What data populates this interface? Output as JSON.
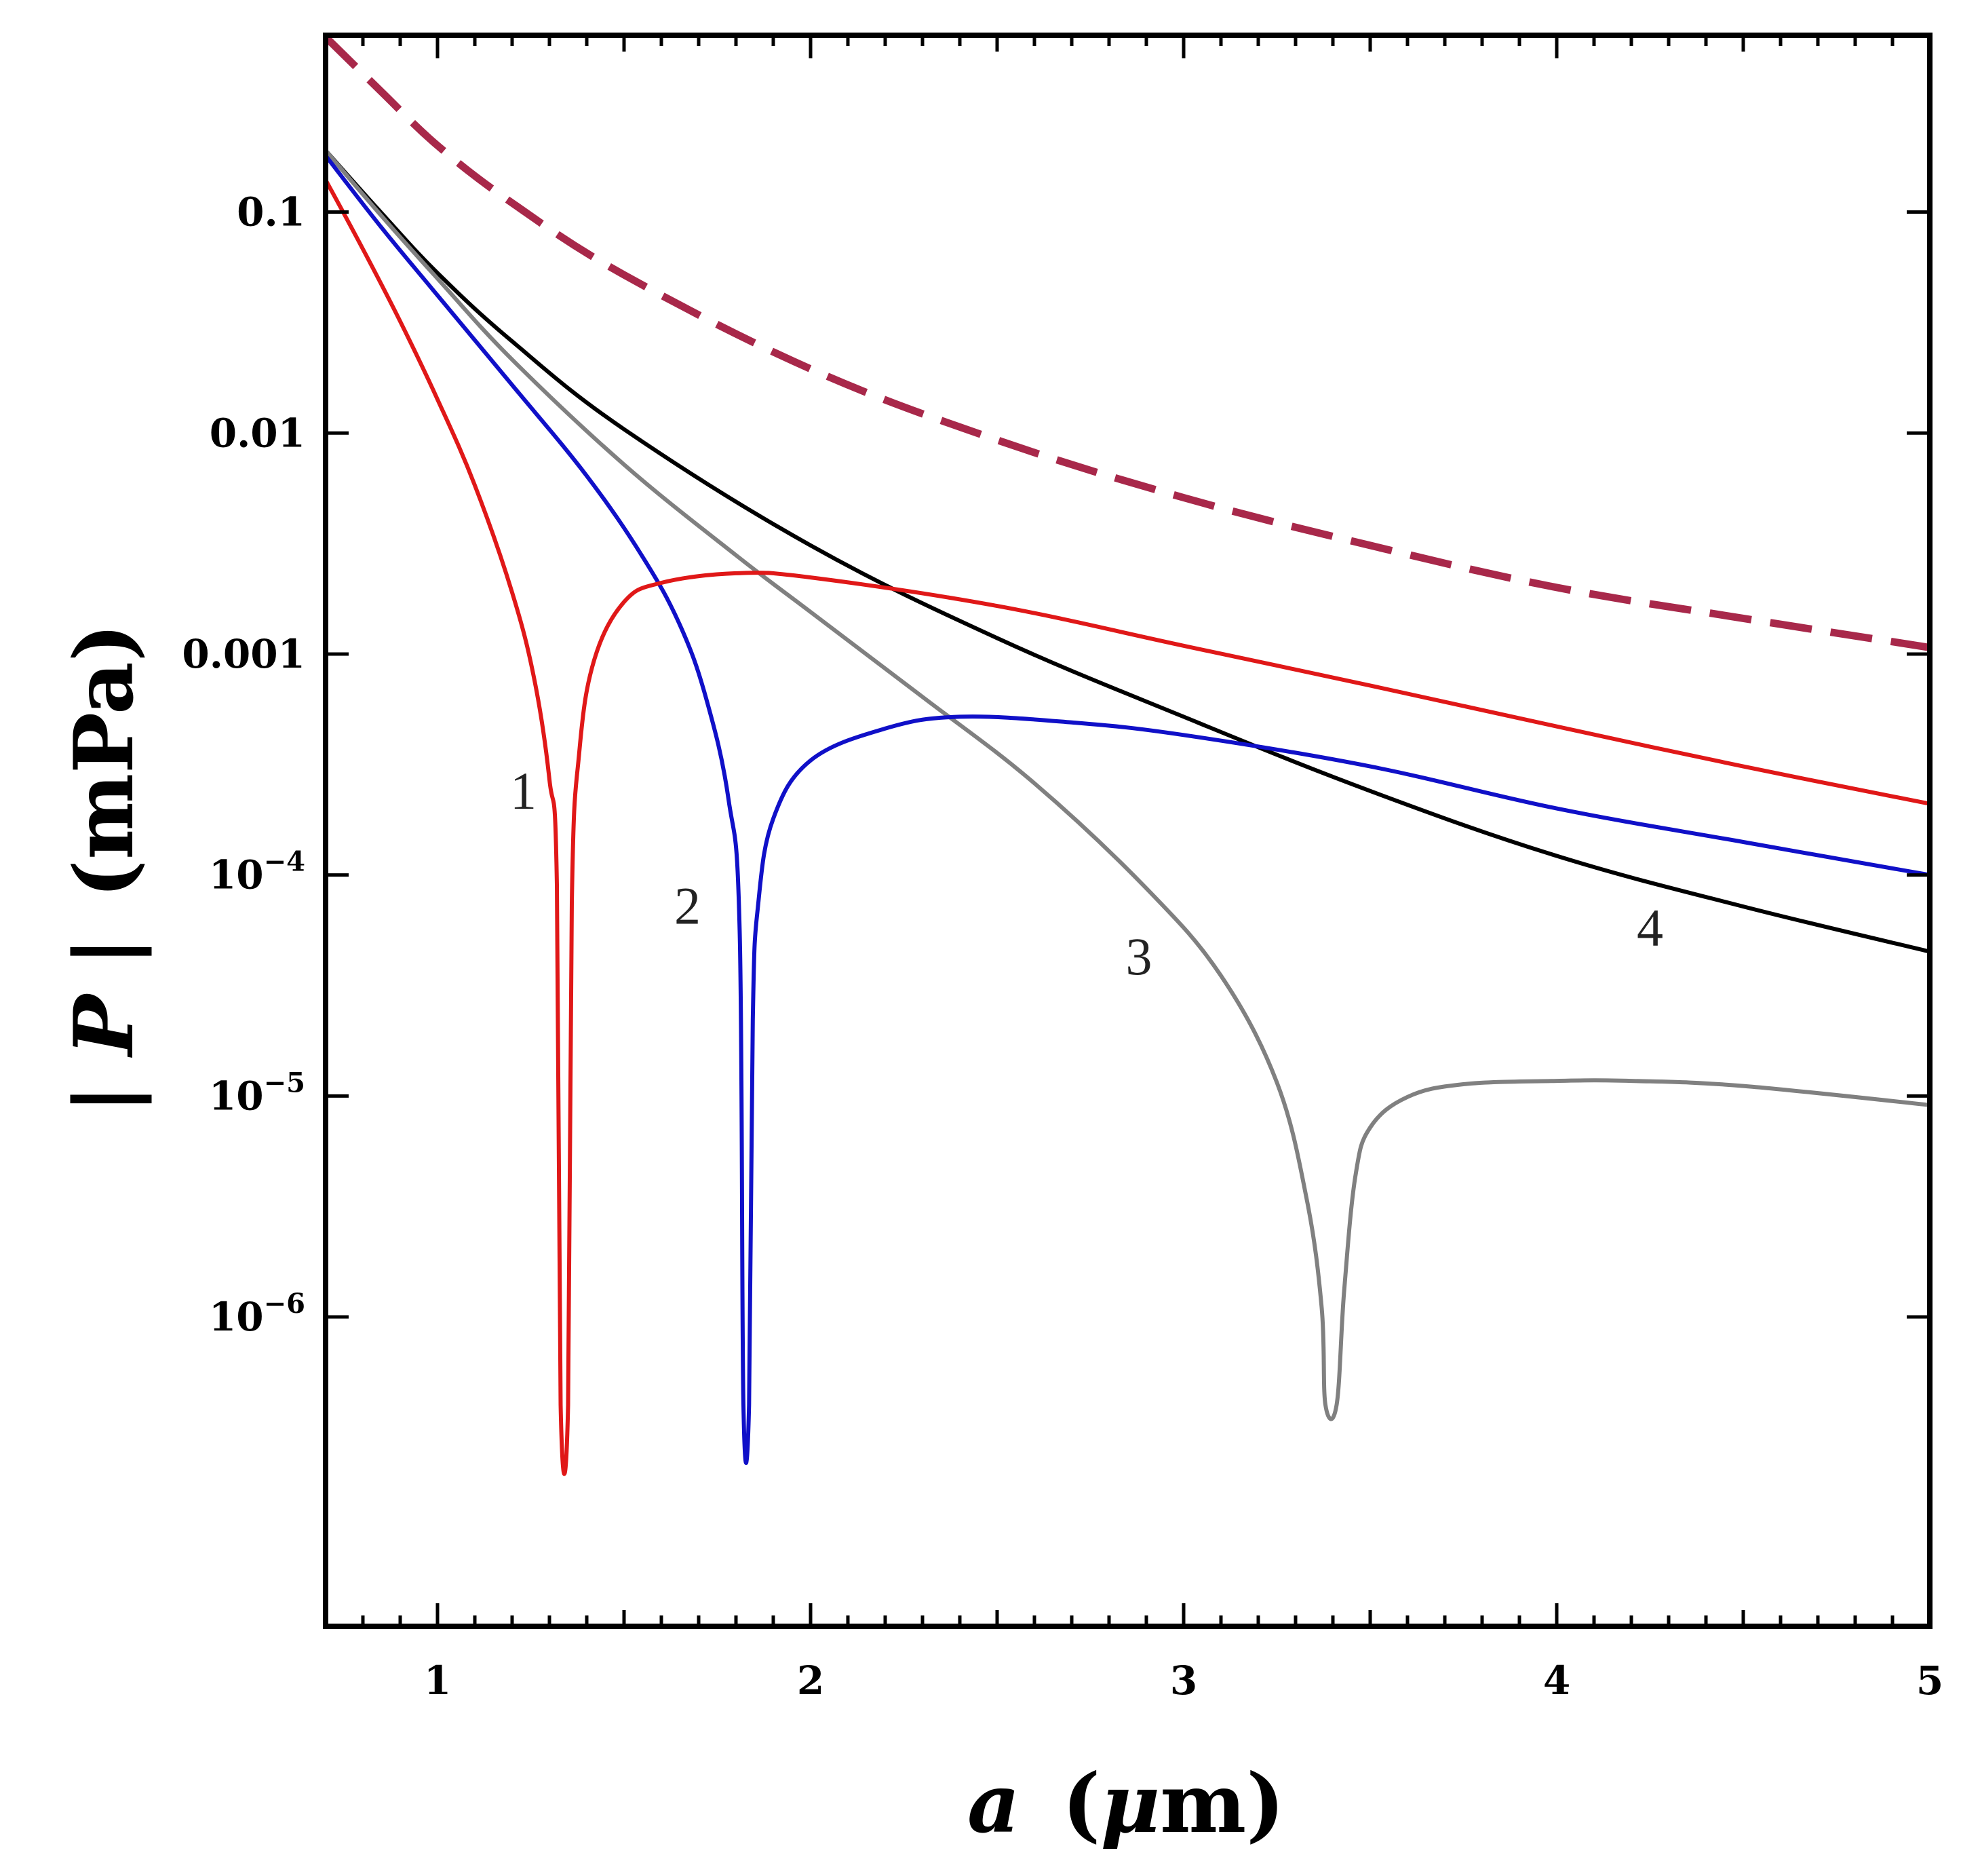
{
  "chart_data": {
    "type": "line",
    "title": "",
    "xlabel": {
      "var": "a",
      "unit": "(μm)",
      "mu_glyph": "μ",
      "unit_suffix": "m"
    },
    "ylabel": {
      "var": "P",
      "bar": "|",
      "unit": "(mPa)"
    },
    "xlim": [
      0.7,
      5.0
    ],
    "ylim_log10": [
      -7.4,
      -0.2
    ],
    "yscale": "log",
    "grid": false,
    "legend": "none",
    "x_ticks": [
      {
        "value": 1,
        "label": "1"
      },
      {
        "value": 2,
        "label": "2"
      },
      {
        "value": 3,
        "label": "3"
      },
      {
        "value": 4,
        "label": "4"
      },
      {
        "value": 5,
        "label": "5"
      }
    ],
    "y_ticks": [
      {
        "log10": -1,
        "base": "0.1",
        "exp": ""
      },
      {
        "log10": -2,
        "base": "0.01",
        "exp": ""
      },
      {
        "log10": -3,
        "base": "0.001",
        "exp": ""
      },
      {
        "log10": -4,
        "base": "10",
        "exp": "−4"
      },
      {
        "log10": -5,
        "base": "10",
        "exp": "−5"
      },
      {
        "log10": -6,
        "base": "10",
        "exp": "−6"
      }
    ],
    "series": [
      {
        "name": "dashed",
        "color": "#a8284a",
        "style": "dashed",
        "x": [
          0.7,
          0.85,
          1.0,
          1.2,
          1.5,
          2.0,
          2.5,
          3.0,
          3.5,
          4.0,
          4.5,
          5.0
        ],
        "y": [
          0.62,
          0.35,
          0.2,
          0.11,
          0.052,
          0.0195,
          0.0093,
          0.0051,
          0.0031,
          0.002,
          0.00145,
          0.00107
        ]
      },
      {
        "name": "4",
        "color": "#000000",
        "style": "solid",
        "x": [
          0.7,
          0.85,
          1.0,
          1.2,
          1.5,
          2.0,
          2.5,
          3.0,
          3.5,
          4.0,
          4.5,
          5.0
        ],
        "y": [
          0.19,
          0.099,
          0.053,
          0.026,
          0.0104,
          0.0031,
          0.00118,
          0.00052,
          0.00024,
          0.000122,
          7.2e-05,
          4.5e-05
        ]
      },
      {
        "name": "3",
        "color": "#808080",
        "style": "solid",
        "x": [
          0.7,
          0.85,
          1.0,
          1.2,
          1.5,
          1.8,
          2.0,
          2.3,
          2.6,
          2.9,
          3.1,
          3.25,
          3.33,
          3.37,
          3.38,
          3.41,
          3.43,
          3.46,
          3.5,
          3.6,
          3.75,
          4.0,
          4.2,
          4.5,
          5.0
        ],
        "y": [
          0.19,
          0.096,
          0.05,
          0.0215,
          0.0072,
          0.0028,
          0.00155,
          0.00064,
          0.00026,
          8.7e-05,
          3.5e-05,
          1.15e-05,
          3.4e-06,
          1.1e-06,
          4e-07,
          4e-07,
          1.3e-06,
          4.3e-06,
          7.2e-06,
          9.9e-06,
          1.13e-05,
          1.17e-05,
          1.17e-05,
          1.11e-05,
          9.1e-06
        ]
      },
      {
        "name": "2",
        "color": "#1010c8",
        "style": "solid",
        "x": [
          0.7,
          0.85,
          1.0,
          1.2,
          1.4,
          1.55,
          1.65,
          1.72,
          1.78,
          1.81,
          1.82,
          1.835,
          1.845,
          1.86,
          1.9,
          2.0,
          2.2,
          2.4,
          2.7,
          3.0,
          3.5,
          4.0,
          4.5,
          5.0
        ],
        "y": [
          0.18,
          0.085,
          0.042,
          0.0165,
          0.0064,
          0.00275,
          0.00135,
          0.00063,
          0.00022,
          5.5e-05,
          4e-07,
          4e-07,
          2.2e-05,
          7.5e-05,
          0.00018,
          0.00033,
          0.00046,
          0.00052,
          0.00049,
          0.00043,
          0.00031,
          0.0002,
          0.000141,
          0.0001
        ]
      },
      {
        "name": "1",
        "color": "#e01818",
        "style": "solid",
        "x": [
          0.7,
          0.8,
          0.9,
          1.0,
          1.1,
          1.2,
          1.26,
          1.3,
          1.32,
          1.33,
          1.35,
          1.36,
          1.38,
          1.42,
          1.5,
          1.6,
          1.8,
          2.0,
          2.5,
          3.0,
          3.5,
          4.0,
          4.5,
          5.0
        ],
        "y": [
          0.14,
          0.068,
          0.032,
          0.0142,
          0.0058,
          0.0019,
          0.00076,
          0.00027,
          9e-05,
          4e-07,
          4e-07,
          7.5e-05,
          0.00036,
          0.00094,
          0.00172,
          0.0021,
          0.00232,
          0.00222,
          0.00165,
          0.00109,
          0.00072,
          0.00047,
          0.00031,
          0.00021
        ]
      }
    ],
    "annotations": [
      {
        "text": "1",
        "x": 1.23,
        "y_log10": -3.7
      },
      {
        "text": "2",
        "x": 1.67,
        "y_log10": -4.22
      },
      {
        "text": "3",
        "x": 2.88,
        "y_log10": -4.45
      },
      {
        "text": "4",
        "x": 4.25,
        "y_log10": -4.32
      }
    ]
  }
}
